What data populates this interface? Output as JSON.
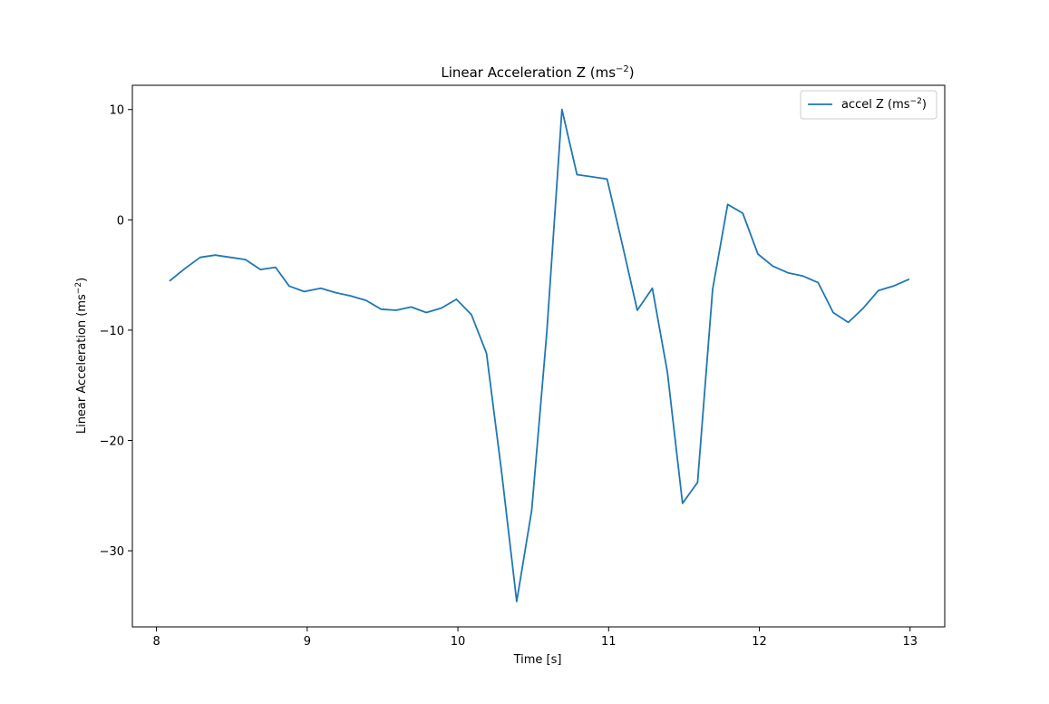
{
  "chart_data": {
    "type": "line",
    "title": "Linear Acceleration Z (ms",
    "title_sup": "−2",
    "title_suffix": ")",
    "xlabel": "Time [s]",
    "ylabel": "Linear Acceleration (ms",
    "ylabel_sup": "−2",
    "ylabel_suffix": ")",
    "xlim": [
      7.84,
      13.23
    ],
    "ylim": [
      -36.9,
      12.2
    ],
    "xticks": [
      8,
      9,
      10,
      11,
      12,
      13
    ],
    "xtick_labels": [
      "8",
      "9",
      "10",
      "11",
      "12",
      "13"
    ],
    "yticks": [
      10,
      0,
      -10,
      -20,
      -30
    ],
    "ytick_labels": [
      "10",
      "0",
      "−10",
      "−20",
      "−30"
    ],
    "grid": false,
    "legend_position": "top-right",
    "line_color": "#1f77b4",
    "series": [
      {
        "name": "accel Z (ms",
        "name_sup": "−2",
        "name_suffix": ")",
        "x": [
          8.09,
          8.19,
          8.29,
          8.39,
          8.49,
          8.59,
          8.69,
          8.79,
          8.88,
          8.98,
          9.09,
          9.19,
          9.29,
          9.39,
          9.49,
          9.59,
          9.69,
          9.79,
          9.89,
          9.99,
          10.09,
          10.19,
          10.29,
          10.39,
          10.49,
          10.59,
          10.69,
          10.79,
          10.89,
          10.99,
          11.09,
          11.19,
          11.29,
          11.39,
          11.49,
          11.59,
          11.69,
          11.79,
          11.89,
          11.99,
          12.09,
          12.19,
          12.29,
          12.39,
          12.49,
          12.59,
          12.69,
          12.79,
          12.89,
          12.99
        ],
        "y": [
          -5.5,
          -4.4,
          -3.4,
          -3.2,
          -3.4,
          -3.6,
          -4.5,
          -4.3,
          -6.0,
          -6.5,
          -6.2,
          -6.6,
          -6.9,
          -7.3,
          -8.1,
          -8.2,
          -7.9,
          -8.4,
          -8.0,
          -7.2,
          -8.6,
          -12.1,
          -22.9,
          -34.6,
          -26.3,
          -10.2,
          10.0,
          4.1,
          3.9,
          3.7,
          -2.2,
          -8.2,
          -6.2,
          -13.8,
          -25.7,
          -23.8,
          -6.3,
          1.4,
          0.6,
          -3.1,
          -4.2,
          -4.8,
          -5.1,
          -5.7,
          -8.4,
          -9.3,
          -8.0,
          -6.4,
          -6.0,
          -5.4
        ]
      }
    ]
  }
}
